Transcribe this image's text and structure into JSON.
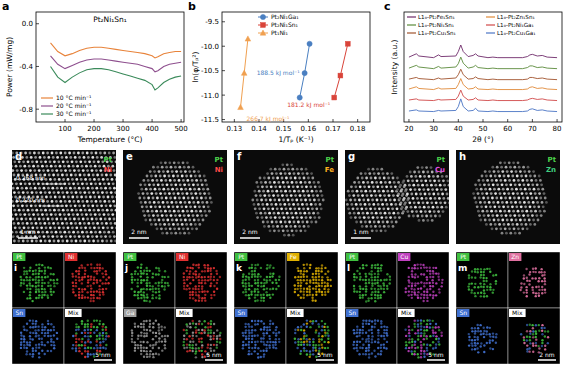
{
  "chart_data": [
    {
      "type": "line",
      "label": "a",
      "title": "Pt₂Ni₁Sn₁",
      "x_label": "Temperature (°C)",
      "y_label": "Power (mW/mg)",
      "x": [
        50,
        75,
        100,
        125,
        150,
        175,
        200,
        225,
        250,
        275,
        300,
        325,
        350,
        375,
        400,
        410,
        420,
        440,
        460,
        480,
        500
      ],
      "series": [
        {
          "name": "10 °C min⁻¹",
          "color": "#e8833a",
          "values": [
            -0.18,
            -0.26,
            -0.3,
            -0.28,
            -0.25,
            -0.23,
            -0.22,
            -0.22,
            -0.23,
            -0.24,
            -0.25,
            -0.26,
            -0.27,
            -0.28,
            -0.3,
            -0.32,
            -0.31,
            -0.28,
            -0.27,
            -0.26,
            -0.26
          ]
        },
        {
          "name": "20 °C min⁻¹",
          "color": "#8e4f8e",
          "values": [
            -0.3,
            -0.38,
            -0.42,
            -0.39,
            -0.36,
            -0.34,
            -0.33,
            -0.33,
            -0.34,
            -0.35,
            -0.36,
            -0.37,
            -0.38,
            -0.4,
            -0.42,
            -0.45,
            -0.44,
            -0.4,
            -0.38,
            -0.37,
            -0.36
          ]
        },
        {
          "name": "30 °C min⁻¹",
          "color": "#3a8a5a",
          "values": [
            -0.4,
            -0.5,
            -0.55,
            -0.5,
            -0.46,
            -0.43,
            -0.42,
            -0.42,
            -0.43,
            -0.45,
            -0.47,
            -0.49,
            -0.51,
            -0.53,
            -0.57,
            -0.62,
            -0.6,
            -0.55,
            -0.52,
            -0.5,
            -0.49
          ]
        }
      ],
      "xlim": [
        0,
        510
      ],
      "xticks": [
        100,
        200,
        300,
        400,
        500
      ],
      "ylim": [
        -0.92,
        0.11
      ],
      "yticks": [
        -0.8,
        -0.4,
        {
          "value": 0,
          "label": "0.0"
        }
      ],
      "grid": false,
      "legend": "lower left"
    },
    {
      "type": "scatter",
      "label": "b",
      "x_label": "1/Tₚ (K⁻¹)",
      "y_label": "ln(φ/Tₚ²)",
      "series": [
        {
          "name": "Pt₂Ni₁Ga₁",
          "color": "#4a7fc1",
          "marker": "circle",
          "line_style": "solid",
          "annotation": "188.5 kJ mol⁻¹",
          "x": [
            0.1565,
            0.1585,
            0.1605
          ],
          "values": [
            -11.05,
            -10.55,
            -9.95
          ]
        },
        {
          "name": "Pt₂Ni₁Sn₁",
          "color": "#d9443a",
          "marker": "square",
          "line_style": "solid",
          "annotation": "181.2 kJ mol⁻¹",
          "x": [
            0.1705,
            0.173,
            0.176
          ],
          "values": [
            -11.05,
            -10.6,
            -9.95
          ]
        },
        {
          "name": "Pt₁Ni₁",
          "color": "#f0a050",
          "marker": "triangle",
          "line_style": "solid",
          "annotation": "266.7 kJ mol⁻¹",
          "x": [
            0.1325,
            0.134,
            0.1355
          ],
          "values": [
            -11.25,
            -10.55,
            -9.85
          ]
        }
      ],
      "xlim": [
        0.125,
        0.185
      ],
      "xticks": [
        0.13,
        0.14,
        0.15,
        0.16,
        0.17,
        0.18
      ],
      "ylim": [
        -11.55,
        -9.3
      ],
      "yticks": [
        -9.5,
        {
          "value": -10,
          "label": "-10.0"
        },
        -10.5,
        {
          "value": -11,
          "label": "-11.0"
        },
        -11.5
      ],
      "grid": false,
      "legend": "upper left"
    },
    {
      "type": "line",
      "label": "c",
      "x_label": "2θ (°)",
      "y_label": "Intensity (a.u.)",
      "x": [
        20,
        23,
        24,
        30,
        32,
        33,
        39,
        40,
        41,
        42,
        44,
        46,
        47,
        48,
        52,
        54,
        56,
        66,
        68,
        69,
        70,
        72,
        74,
        76,
        80
      ],
      "series": [
        {
          "name": "L1₀-Pt₂Fe₁Sn₁",
          "color": "#6e2a6a",
          "values": [
            5.9,
            6.2,
            6.0,
            5.85,
            6.1,
            5.95,
            6.0,
            6.4,
            7.0,
            6.4,
            5.95,
            6.05,
            6.2,
            6.0,
            5.85,
            5.9,
            5.85,
            5.85,
            5.95,
            6.1,
            6.15,
            6.0,
            6.05,
            5.9,
            5.85
          ]
        },
        {
          "name": "L1₀-Pt₂Ni₁Sn₁",
          "color": "#5a8a3a",
          "values": [
            4.9,
            5.15,
            5.0,
            4.85,
            5.05,
            4.9,
            5.0,
            5.3,
            5.9,
            5.35,
            4.9,
            5.0,
            5.15,
            4.95,
            4.85,
            4.9,
            4.85,
            4.85,
            4.95,
            5.1,
            5.1,
            4.95,
            5.0,
            4.9,
            4.85
          ]
        },
        {
          "name": "L1₀-Pt₂Cu₁Sn₁",
          "color": "#a0522d",
          "values": [
            3.9,
            4.05,
            3.95,
            3.85,
            4.0,
            3.9,
            4.0,
            4.3,
            4.8,
            4.3,
            3.9,
            3.95,
            4.1,
            3.95,
            3.85,
            3.9,
            3.85,
            3.85,
            3.9,
            4.05,
            4.05,
            3.95,
            4.0,
            3.9,
            3.85
          ]
        },
        {
          "name": "L1₀-Pt₂Zn₁Sn₁",
          "color": "#e08a3a",
          "values": [
            3.0,
            3.2,
            3.05,
            2.95,
            3.1,
            3.0,
            3.05,
            3.4,
            3.95,
            3.4,
            3.0,
            3.05,
            3.2,
            3.0,
            2.95,
            3.0,
            2.95,
            2.95,
            3.0,
            3.15,
            3.2,
            3.05,
            3.1,
            3.0,
            2.95
          ]
        },
        {
          "name": "L1₀-Pt₂Ni₁Ga₁",
          "color": "#d04848",
          "values": [
            2.0,
            2.1,
            2.0,
            1.95,
            2.05,
            2.0,
            2.05,
            2.35,
            2.9,
            2.35,
            2.0,
            2.05,
            2.2,
            2.0,
            1.95,
            2.0,
            1.95,
            1.95,
            2.0,
            2.1,
            2.15,
            2.05,
            2.1,
            2.0,
            1.95
          ]
        },
        {
          "name": "L1₀-Pt₂Cu₁Ga₁",
          "color": "#4a74c4",
          "values": [
            1.0,
            1.1,
            1.0,
            0.95,
            1.05,
            1.0,
            1.05,
            1.4,
            2.1,
            1.4,
            1.0,
            1.05,
            1.25,
            1.0,
            0.95,
            1.0,
            0.95,
            0.95,
            1.0,
            1.15,
            1.2,
            1.05,
            1.1,
            1.0,
            0.95
          ]
        }
      ],
      "xlim": [
        18,
        82
      ],
      "xticks": [
        20,
        30,
        40,
        50,
        60,
        70,
        80
      ],
      "ylim": [
        0,
        10
      ],
      "tick_labels": "x",
      "grid": false,
      "legend": "top"
    }
  ],
  "images": [
    {
      "label": "d",
      "scale_bar": "1 nm",
      "spacings": [
        "0.268 nm",
        "0.220 nm"
      ],
      "elements": [
        {
          "name": "Pt",
          "color": "#4cd24c"
        },
        {
          "name": "Ni",
          "color": "#ff4a4a"
        }
      ]
    },
    {
      "label": "e",
      "scale_bar": "2 nm",
      "elements": [
        {
          "name": "Pt",
          "color": "#4cd24c"
        },
        {
          "name": "Ni",
          "color": "#ff4a4a"
        }
      ]
    },
    {
      "label": "f",
      "scale_bar": "2 nm",
      "elements": [
        {
          "name": "Pt",
          "color": "#4cd24c"
        },
        {
          "name": "Fe",
          "color": "#ffb020"
        }
      ]
    },
    {
      "label": "g",
      "scale_bar": "1 nm",
      "elements": [
        {
          "name": "Pt",
          "color": "#4cd24c"
        },
        {
          "name": "Cu",
          "color": "#e050e0"
        }
      ]
    },
    {
      "label": "h",
      "elements": [
        {
          "name": "Pt",
          "color": "#4cd24c"
        },
        {
          "name": "Zn",
          "color": "#40d080"
        }
      ]
    }
  ],
  "maps": [
    {
      "label": "i",
      "scale_bar": "5 nm",
      "channels": [
        {
          "name": "Pt",
          "color": "#3fbf3f"
        },
        {
          "name": "Ni",
          "color": "#e03030"
        },
        {
          "name": "Sn",
          "color": "#4070d0"
        },
        {
          "name": "Mix",
          "color": "#ffffff"
        }
      ]
    },
    {
      "label": "j",
      "scale_bar": "5 nm",
      "channels": [
        {
          "name": "Pt",
          "color": "#3fbf3f"
        },
        {
          "name": "Ni",
          "color": "#e03030"
        },
        {
          "name": "Ga",
          "color": "#a0a0a0"
        },
        {
          "name": "Mix",
          "color": "#ffffff"
        }
      ]
    },
    {
      "label": "k",
      "scale_bar": "5 nm",
      "channels": [
        {
          "name": "Pt",
          "color": "#3fbf3f"
        },
        {
          "name": "Fe",
          "color": "#e0b000"
        },
        {
          "name": "Sn",
          "color": "#4070d0"
        },
        {
          "name": "Mix",
          "color": "#ffffff"
        }
      ]
    },
    {
      "label": "l",
      "scale_bar": "5 nm",
      "channels": [
        {
          "name": "Pt",
          "color": "#3fbf3f"
        },
        {
          "name": "Cu",
          "color": "#c040c0"
        },
        {
          "name": "Sn",
          "color": "#4070d0"
        },
        {
          "name": "Mix",
          "color": "#ffffff"
        }
      ]
    },
    {
      "label": "m",
      "scale_bar": "2 nm",
      "channels": [
        {
          "name": "Pt",
          "color": "#3fbf3f"
        },
        {
          "name": "Zn",
          "color": "#e070a0"
        },
        {
          "name": "Sn",
          "color": "#4070d0"
        },
        {
          "name": "Mix",
          "color": "#ffffff"
        }
      ]
    }
  ]
}
